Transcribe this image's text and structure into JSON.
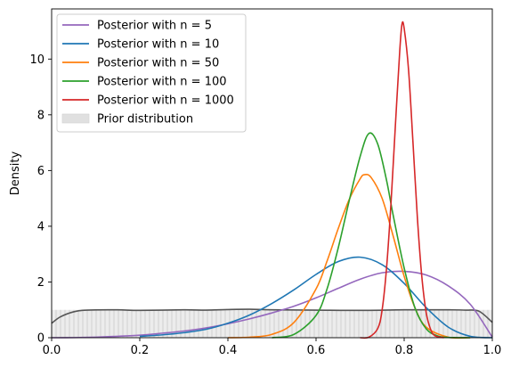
{
  "chart_data": {
    "type": "line",
    "title": "",
    "xlabel": "",
    "ylabel": "Density",
    "xlim": [
      0.0,
      1.0
    ],
    "ylim": [
      0,
      11.8
    ],
    "x_ticks": [
      0.0,
      0.2,
      0.4,
      0.6,
      0.8,
      1.0
    ],
    "x_tick_labels": [
      "0.0",
      "0.2",
      "0.4",
      "0.6",
      "0.8",
      "1.0"
    ],
    "y_ticks": [
      0,
      2,
      4,
      6,
      8,
      10
    ],
    "y_tick_labels": [
      "0",
      "2",
      "4",
      "6",
      "8",
      "10"
    ],
    "grid": false,
    "legend_position": "top-left",
    "legend": [
      {
        "label": "Posterior with n = 5",
        "color": "#9467bd",
        "kind": "line"
      },
      {
        "label": "Posterior with n = 10",
        "color": "#1f77b4",
        "kind": "line"
      },
      {
        "label": "Posterior with n = 50",
        "color": "#ff7f0e",
        "kind": "line"
      },
      {
        "label": "Posterior with n = 100",
        "color": "#2ca02c",
        "kind": "line"
      },
      {
        "label": "Posterior with n = 1000",
        "color": "#d62728",
        "kind": "line"
      },
      {
        "label": "Prior distribution",
        "color": "#e0e0e0",
        "kind": "patch"
      }
    ],
    "series": [
      {
        "name": "Posterior with n = 5",
        "color": "#9467bd",
        "x": [
          0,
          0.05,
          0.1,
          0.15,
          0.2,
          0.25,
          0.3,
          0.35,
          0.4,
          0.45,
          0.5,
          0.55,
          0.6,
          0.65,
          0.7,
          0.75,
          0.8,
          0.85,
          0.9,
          0.95,
          1.0
        ],
        "y": [
          0,
          0.004,
          0.02,
          0.05,
          0.09,
          0.16,
          0.24,
          0.35,
          0.5,
          0.68,
          0.89,
          1.13,
          1.43,
          1.77,
          2.1,
          2.33,
          2.38,
          2.25,
          1.86,
          1.2,
          0.02
        ]
      },
      {
        "name": "Posterior with n = 10",
        "color": "#1f77b4",
        "x": [
          0.2,
          0.25,
          0.3,
          0.35,
          0.4,
          0.45,
          0.5,
          0.55,
          0.6,
          0.65,
          0.7,
          0.75,
          0.8,
          0.85,
          0.9,
          0.95,
          1.0
        ],
        "y": [
          0.05,
          0.1,
          0.18,
          0.3,
          0.52,
          0.82,
          1.23,
          1.72,
          2.27,
          2.73,
          2.89,
          2.62,
          1.95,
          1.08,
          0.38,
          0.05,
          0
        ]
      },
      {
        "name": "Posterior with n = 50",
        "color": "#ff7f0e",
        "x": [
          0.4,
          0.45,
          0.5,
          0.55,
          0.6,
          0.625,
          0.65,
          0.675,
          0.7,
          0.71,
          0.725,
          0.75,
          0.775,
          0.8,
          0.825,
          0.85,
          0.9,
          0.95
        ],
        "y": [
          0,
          0.02,
          0.12,
          0.55,
          1.75,
          2.75,
          3.9,
          4.95,
          5.7,
          5.85,
          5.75,
          5.0,
          3.65,
          2.2,
          1.05,
          0.38,
          0.02,
          0
        ]
      },
      {
        "name": "Posterior with n = 100",
        "color": "#2ca02c",
        "x": [
          0.5,
          0.55,
          0.6,
          0.625,
          0.65,
          0.675,
          0.7,
          0.72,
          0.74,
          0.76,
          0.775,
          0.8,
          0.825,
          0.85,
          0.875,
          0.9,
          0.95
        ],
        "y": [
          0,
          0.12,
          0.8,
          1.75,
          3.2,
          4.9,
          6.5,
          7.33,
          6.95,
          5.65,
          4.4,
          2.5,
          1.05,
          0.32,
          0.07,
          0.01,
          0
        ]
      },
      {
        "name": "Posterior with n = 1000",
        "color": "#d62728",
        "x": [
          0.7,
          0.72,
          0.74,
          0.75,
          0.76,
          0.77,
          0.78,
          0.79,
          0.795,
          0.8,
          0.81,
          0.82,
          0.83,
          0.84,
          0.85,
          0.86,
          0.87,
          0.89
        ],
        "y": [
          0,
          0.02,
          0.33,
          1.0,
          2.5,
          4.8,
          7.6,
          10.3,
          11.25,
          11.1,
          9.6,
          7.0,
          4.3,
          2.2,
          0.9,
          0.3,
          0.07,
          0
        ]
      },
      {
        "name": "",
        "color": "#555555",
        "x": [
          0,
          0.02,
          0.05,
          0.08,
          0.15,
          0.2,
          0.3,
          0.35,
          0.4,
          0.45,
          0.5,
          0.6,
          0.7,
          0.8,
          0.9,
          0.94,
          0.97,
          1.0
        ],
        "y": [
          0.52,
          0.75,
          0.93,
          0.99,
          1.0,
          0.98,
          1.0,
          0.99,
          1.01,
          1.02,
          1.0,
          0.99,
          0.98,
          1.0,
          1.0,
          0.99,
          0.95,
          0.55
        ]
      }
    ],
    "prior_band": {
      "name": "Prior distribution",
      "x": [
        0.0,
        1.0
      ],
      "y": 1.0,
      "color": "#e0e0e0",
      "hatch_color": "#c8c8c8"
    }
  }
}
